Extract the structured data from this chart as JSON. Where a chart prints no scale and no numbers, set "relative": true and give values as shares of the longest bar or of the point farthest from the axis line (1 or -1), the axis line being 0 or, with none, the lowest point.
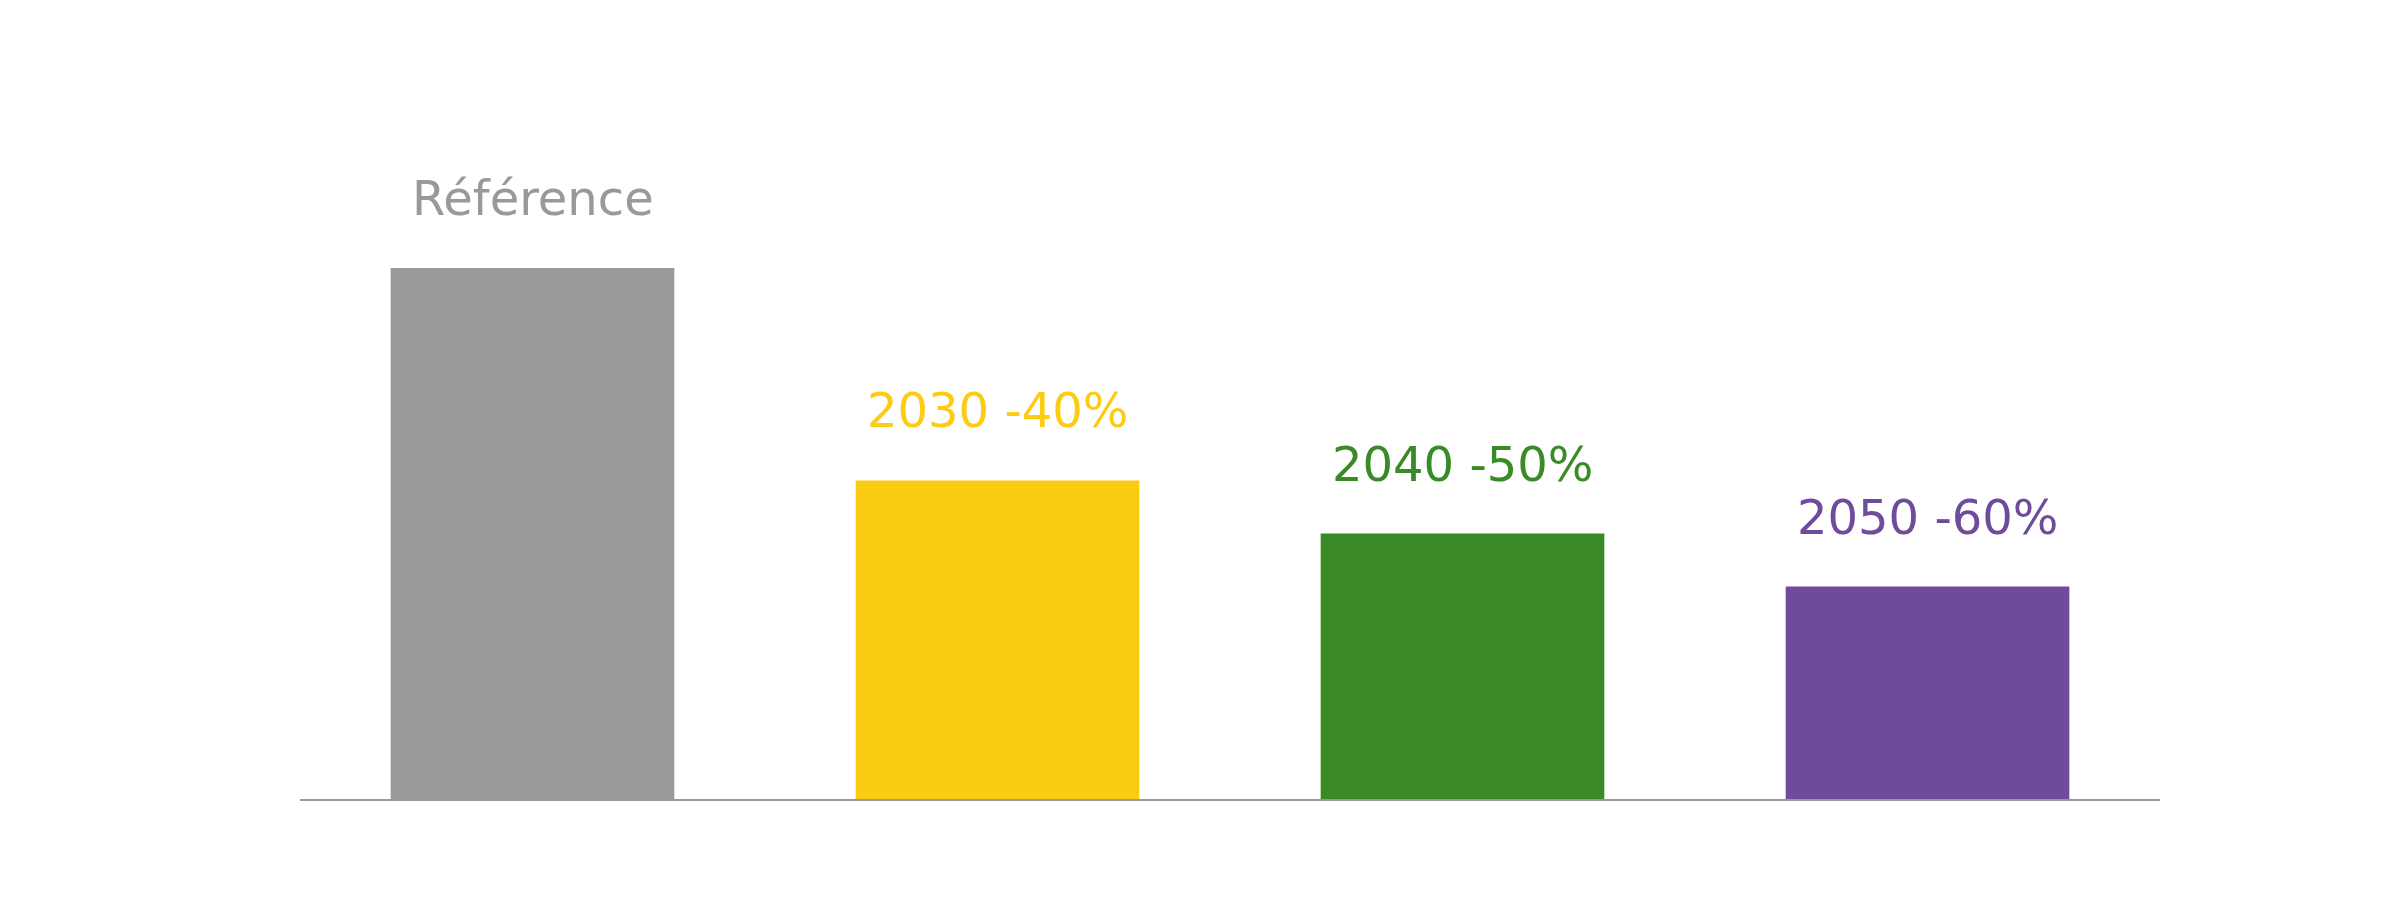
{
  "chart_data": {
    "type": "bar",
    "relative": true,
    "categories": [
      "Référence",
      "2030 -40%",
      "2040 -50%",
      "2050 -60%"
    ],
    "values": [
      1,
      0.6,
      0.5,
      0.4
    ],
    "colors": [
      "#999999",
      "#fccc13",
      "#3a8a27",
      "#6e4c9b"
    ],
    "legend": false
  }
}
